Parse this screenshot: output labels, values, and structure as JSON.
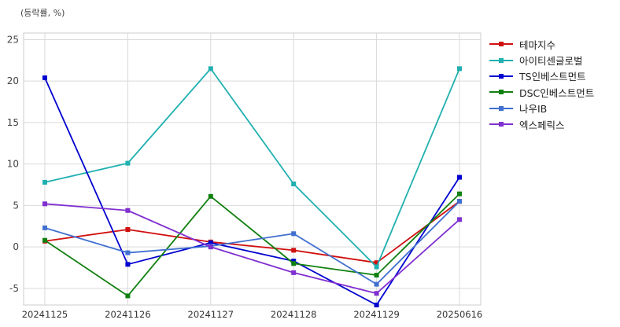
{
  "chart_data": {
    "type": "line",
    "ylabel": "(등락률, %)",
    "categories": [
      "20241125",
      "20241126",
      "20241127",
      "20241128",
      "20241129",
      "20250616"
    ],
    "ylim": [
      -7,
      25.8
    ],
    "yticks": [
      -5,
      0,
      5,
      10,
      15,
      20,
      25
    ],
    "grid": true,
    "legend_position": "right",
    "series": [
      {
        "name": "테마지수",
        "color": "#d01010",
        "values": [
          0.7,
          2.1,
          0.6,
          -0.4,
          -1.9,
          5.5
        ]
      },
      {
        "name": "아이티센글로벌",
        "color": "#20b0b0",
        "values": [
          7.8,
          10.1,
          21.5,
          7.6,
          -2.4,
          21.5
        ]
      },
      {
        "name": "TS인베스트먼트",
        "color": "#0000d0",
        "values": [
          20.4,
          -2.1,
          0.5,
          -1.7,
          -7.0,
          8.4
        ]
      },
      {
        "name": "DSC인베스트먼트",
        "color": "#108010",
        "values": [
          0.8,
          -5.9,
          6.1,
          -2.0,
          -3.4,
          6.4
        ]
      },
      {
        "name": "나우IB",
        "color": "#4070d0",
        "values": [
          2.3,
          -0.7,
          0.1,
          1.6,
          -4.5,
          5.5
        ]
      },
      {
        "name": "엑스페릭스",
        "color": "#8030d0",
        "values": [
          5.2,
          4.4,
          0.0,
          -3.1,
          -5.6,
          3.3
        ]
      }
    ]
  }
}
